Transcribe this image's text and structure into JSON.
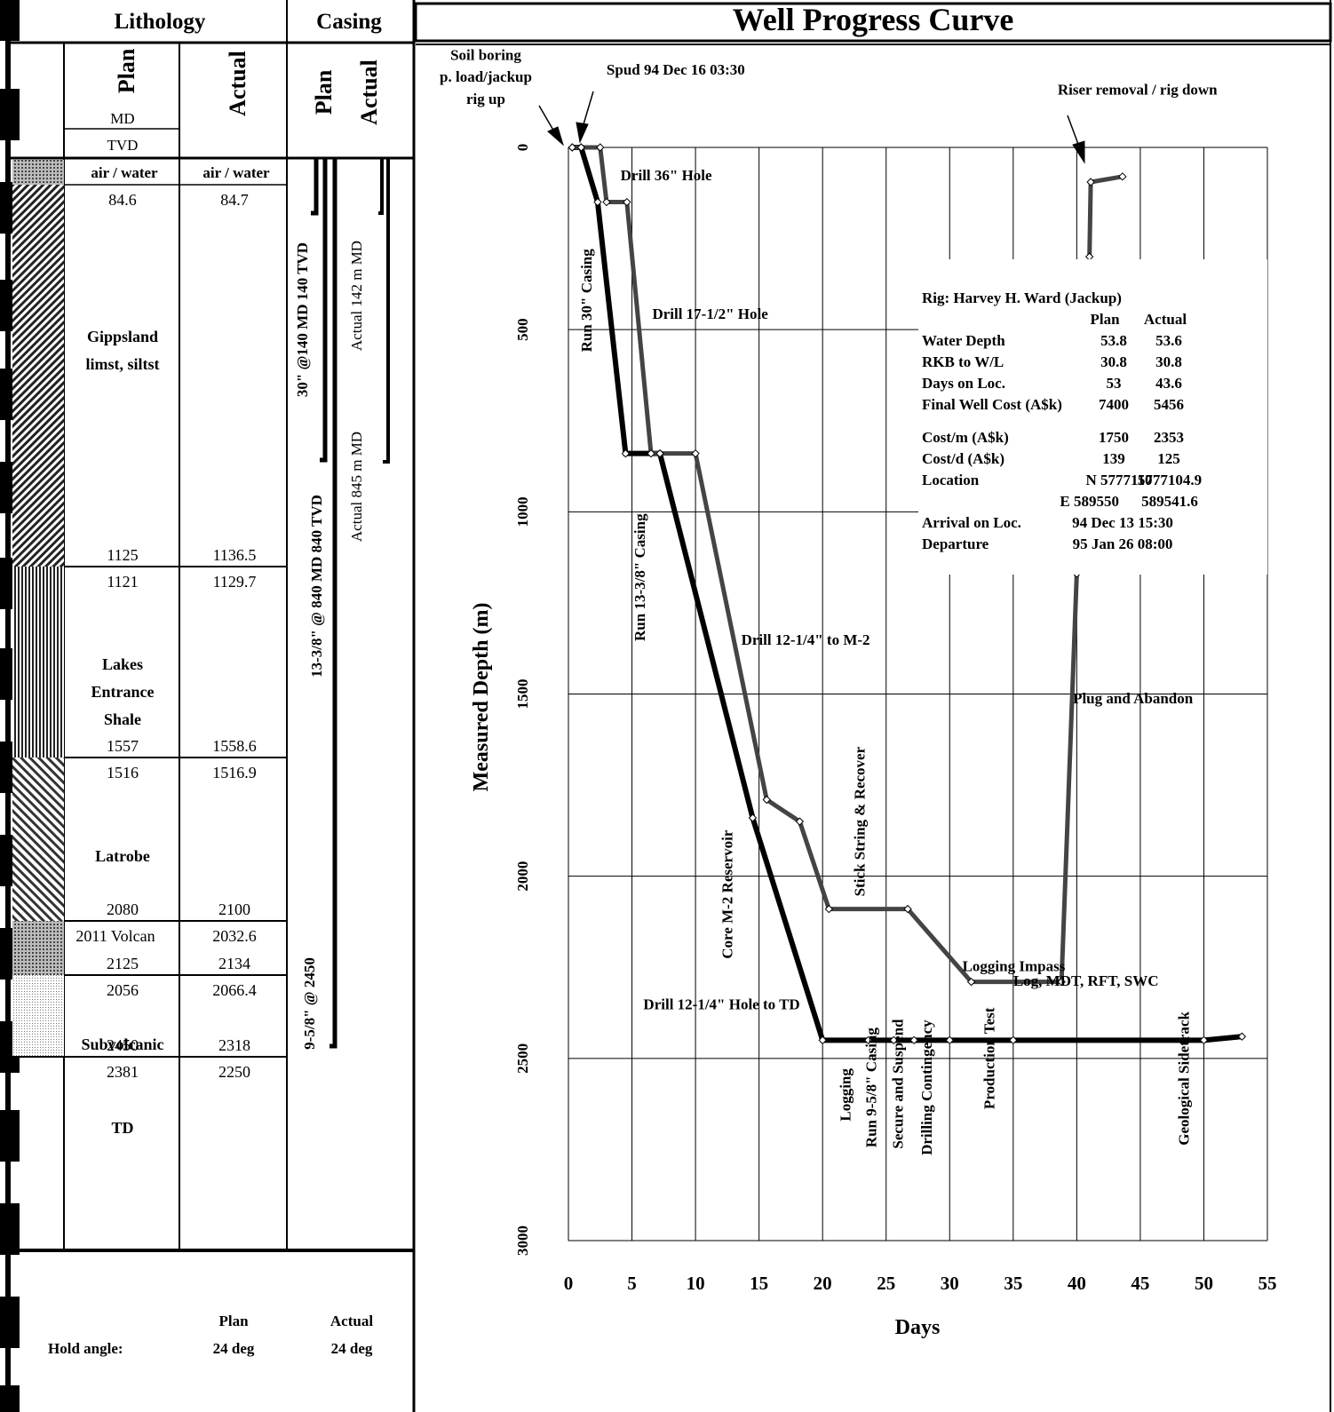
{
  "header": {
    "lithology_title": "Lithology",
    "casing_title": "Casing",
    "chart_title": "Well Progress Curve"
  },
  "lithology": {
    "col_plan": "Plan",
    "col_actual": "Actual",
    "md_label": "MD",
    "tvd_label": "TVD",
    "air_water_plan": "air / water",
    "air_water_actual": "air / water",
    "units": [
      {
        "name": [
          "",
          "Gippsland",
          "limst, siltst"
        ],
        "plan_top": "84.6",
        "actual_top": "84.7",
        "plan_base": "1125",
        "actual_base": "1136.5"
      },
      {
        "name": [
          "Lakes",
          "Entrance",
          "Shale"
        ],
        "plan_top": "1121",
        "actual_top": "1129.7",
        "plan_base": "1557",
        "actual_base": "1558.6"
      },
      {
        "name": [
          "Latrobe"
        ],
        "plan_top": "1516",
        "actual_top": "1516.9",
        "plan_base": "2080",
        "actual_base": "2100"
      },
      {
        "name": [],
        "plan_top": "2011 Volcan",
        "actual_top": "2032.6",
        "plan_base": "2125",
        "actual_base": "2134"
      },
      {
        "name": [
          "Subvolcanic"
        ],
        "plan_top": "2056",
        "actual_top": "2066.4",
        "plan_base": "2450",
        "actual_base": "2318"
      },
      {
        "name": [
          "TD"
        ],
        "plan_top": "2381",
        "actual_top": "2250",
        "plan_base": "",
        "actual_base": ""
      }
    ],
    "hold_angle_label": "Hold angle:",
    "hold_plan_label": "Plan",
    "hold_actual_label": "Actual",
    "hold_plan_value": "24 deg",
    "hold_actual_value": "24 deg"
  },
  "casing": {
    "col_plan": "Plan",
    "col_actual": "Actual",
    "plan_labels": [
      "30\" @140 MD 140 TVD",
      "13-3/8\" @ 840 MD 840 TVD",
      "9-5/8\" @ 2450"
    ],
    "actual_labels": [
      "Actual 142 m MD",
      "Actual 845 m MD"
    ]
  },
  "chart_data": {
    "type": "line",
    "title": "Well Progress Curve",
    "xlabel": "Days",
    "ylabel": "Measured Depth (m)",
    "xlim": [
      0,
      55
    ],
    "ylim": [
      3000,
      0
    ],
    "xticks": [
      0,
      5,
      10,
      15,
      20,
      25,
      30,
      35,
      40,
      45,
      50,
      55
    ],
    "yticks": [
      0,
      500,
      1000,
      1500,
      2000,
      2500,
      3000
    ],
    "series": [
      {
        "style": "plan",
        "color": "#000000",
        "x": [
          0.3,
          1.0,
          2.3,
          4.5,
          7.2,
          14.5,
          20.0,
          23.6,
          25.6,
          27.2,
          30.0,
          35.0,
          50.0,
          53.0
        ],
        "y": [
          0,
          0,
          150,
          840,
          840,
          1840,
          2450,
          2450,
          2450,
          2450,
          2450,
          2450,
          2450,
          2440
        ]
      },
      {
        "style": "actual",
        "color": "#444444",
        "x": [
          0.3,
          1.0,
          2.5,
          3.0,
          4.6,
          6.5,
          7.2,
          10.0,
          15.6,
          18.2,
          20.5,
          26.7,
          31.7,
          38.8,
          40.0
        ],
        "y": [
          0,
          0,
          0,
          150,
          150,
          840,
          840,
          840,
          1790,
          1850,
          2090,
          2090,
          2290,
          2290,
          1170
        ]
      },
      {
        "style": "actual",
        "color": "#444444",
        "x": [
          41.0,
          41.1,
          43.6
        ],
        "y": [
          300,
          95,
          80
        ]
      }
    ],
    "annotations": [
      {
        "text": "Soil boring",
        "x": -6.5,
        "y": -240,
        "size": 17
      },
      {
        "text": "p. load/jackup",
        "x": -6.5,
        "y": -180,
        "size": 17
      },
      {
        "text": "rig up",
        "x": -6.5,
        "y": -120,
        "size": 17
      },
      {
        "text": "Spud  94 Dec 16 03:30",
        "x": 3.0,
        "y": -200,
        "size": 17,
        "anchor": "start"
      },
      {
        "text": "Riser removal / rig down",
        "x": 38.5,
        "y": -145,
        "size": 17,
        "anchor": "start"
      },
      {
        "text": "Drill 36\" Hole",
        "x": 4.1,
        "y": 90,
        "size": 17,
        "anchor": "start"
      },
      {
        "text": "Run 30\" Casing",
        "x": 1.8,
        "y": 420,
        "size": 17,
        "rotate": true
      },
      {
        "text": "Drill 17-1/2\" Hole",
        "x": 6.6,
        "y": 470,
        "size": 17,
        "anchor": "start"
      },
      {
        "text": "Run 13-3/8\" Casing",
        "x": 6.0,
        "y": 1180,
        "size": 17,
        "rotate": true
      },
      {
        "text": "Drill 12-1/4\" to M-2",
        "x": 13.6,
        "y": 1365,
        "size": 17,
        "anchor": "start"
      },
      {
        "text": "Core M-2 Reservoir",
        "x": 12.9,
        "y": 2050,
        "size": 17,
        "rotate": true
      },
      {
        "text": "Stick String & Recover",
        "x": 23.3,
        "y": 1850,
        "size": 17,
        "rotate": true
      },
      {
        "text": "Drill 12-1/4\" Hole to TD",
        "x": 5.9,
        "y": 2365,
        "size": 17,
        "anchor": "start"
      },
      {
        "text": "Logging Impass",
        "x": 31.0,
        "y": 2260,
        "size": 17,
        "anchor": "start"
      },
      {
        "text": "Log, MDT, RFT, SWC",
        "x": 35.0,
        "y": 2300,
        "size": 17,
        "anchor": "start"
      },
      {
        "text": "Plug and Abandon",
        "x": 39.7,
        "y": 1525,
        "size": 17,
        "anchor": "start"
      },
      {
        "text": "Logging",
        "x": 22.2,
        "y": 2600,
        "size": 17,
        "rotate": true
      },
      {
        "text": "Run 9-5/8\" Casing",
        "x": 24.2,
        "y": 2580,
        "size": 17,
        "rotate": true
      },
      {
        "text": "Secure and Suspend",
        "x": 26.3,
        "y": 2570,
        "size": 17,
        "rotate": true
      },
      {
        "text": "Drilling Contingency",
        "x": 28.6,
        "y": 2580,
        "size": 17,
        "rotate": true
      },
      {
        "text": "Production Test",
        "x": 33.5,
        "y": 2500,
        "size": 17,
        "rotate": true
      },
      {
        "text": "Geological Sidetrack",
        "x": 48.8,
        "y": 2555,
        "size": 17,
        "rotate": true
      }
    ],
    "info_box": {
      "rig": "Rig: Harvey H. Ward (Jackup)",
      "header": [
        "Plan",
        "Actual"
      ],
      "rows": [
        {
          "label": "Water Depth",
          "plan": "53.8",
          "actual": "53.6"
        },
        {
          "label": "RKB to W/L",
          "plan": "30.8",
          "actual": "30.8"
        },
        {
          "label": "Days on Loc.",
          "plan": "53",
          "actual": "43.6"
        },
        {
          "label": "Final Well Cost (A$k)",
          "plan": "7400",
          "actual": "5456"
        },
        {
          "label": "",
          "plan": "",
          "actual": ""
        },
        {
          "label": "Cost/m (A$k)",
          "plan": "1750",
          "actual": "2353"
        },
        {
          "label": "Cost/d (A$k)",
          "plan": "139",
          "actual": "125"
        },
        {
          "label": "Location",
          "plan": "N 5777110",
          "actual": "5777104.9"
        },
        {
          "label": "",
          "plan": "E 589550",
          "actual": "589541.6"
        },
        {
          "label": "Arrival on Loc.",
          "plan": "94 Dec 13 15:30",
          "actual": ""
        },
        {
          "label": "Departure",
          "plan": "95 Jan 26 08:00",
          "actual": ""
        }
      ]
    }
  }
}
